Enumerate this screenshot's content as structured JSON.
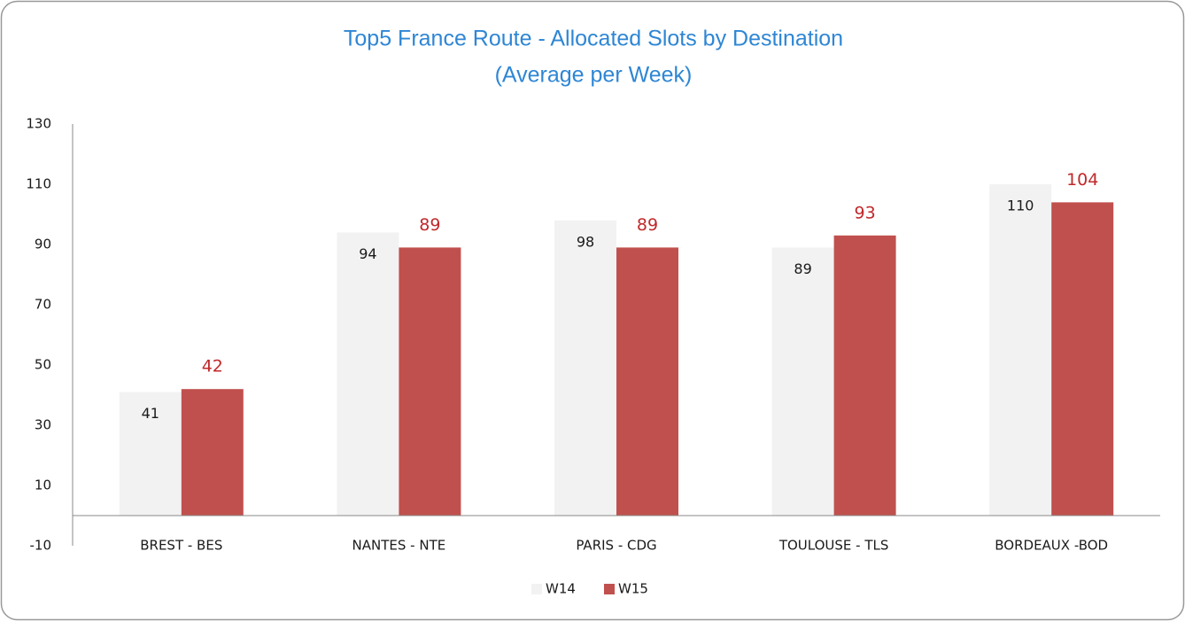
{
  "chart_data": {
    "type": "bar",
    "title": "Top5 France Route - Allocated Slots by Destination",
    "subtitle": "(Average per Week)",
    "categories": [
      "BREST - BES",
      "NANTES - NTE",
      "PARIS - CDG",
      "TOULOUSE - TLS",
      "BORDEAUX -BOD"
    ],
    "series": [
      {
        "name": "W14",
        "color": "#f2f2f2",
        "label_color": "#1a1a1a",
        "values": [
          41,
          94,
          98,
          89,
          110
        ]
      },
      {
        "name": "W15",
        "color": "#c0504d",
        "label_color": "#c0282a",
        "values": [
          42,
          89,
          89,
          93,
          104
        ]
      }
    ],
    "ylim": [
      -10,
      130
    ],
    "yticks": [
      -10,
      10,
      30,
      50,
      70,
      90,
      110,
      130
    ],
    "grid": false,
    "legend": "bottom"
  }
}
